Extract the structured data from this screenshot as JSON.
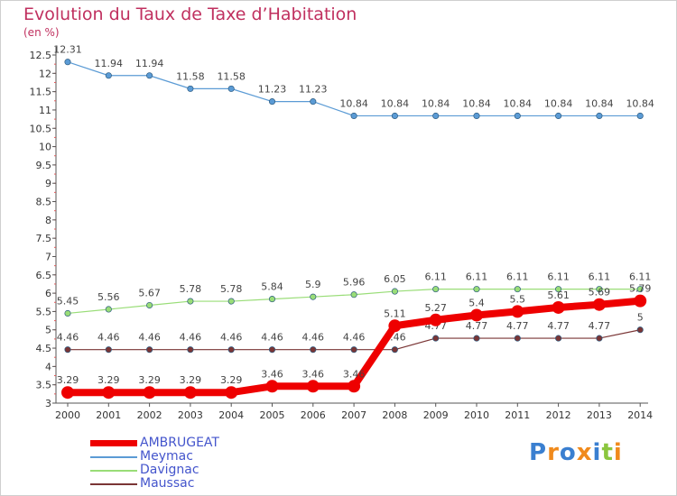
{
  "chart_data": {
    "type": "line",
    "title": "Evolution du Taux de Taxe d’Habitation",
    "unit": "(en %)",
    "x": [
      "2000",
      "2001",
      "2002",
      "2003",
      "2004",
      "2005",
      "2006",
      "2007",
      "2008",
      "2009",
      "2010",
      "2011",
      "2012",
      "2013",
      "2014"
    ],
    "ylim": [
      3,
      12.5
    ],
    "yticks": [
      "3",
      "3.5",
      "4",
      "4.5",
      "5",
      "5.5",
      "6",
      "6.5",
      "7",
      "7.5",
      "8",
      "8.5",
      "9",
      "9.5",
      "10",
      "10.5",
      "11",
      "11.5",
      "12",
      "12.5"
    ],
    "grid": false,
    "legend_position": "bottom-left",
    "series": [
      {
        "name": "Meymac",
        "color": "#5b9bd5",
        "values": [
          12.31,
          11.94,
          11.94,
          11.58,
          11.58,
          11.23,
          11.23,
          10.84,
          10.84,
          10.84,
          10.84,
          10.84,
          10.84,
          10.84,
          10.84
        ],
        "labels": [
          "12.31",
          "11.94",
          "11.94",
          "11.58",
          "11.58",
          "11.23",
          "11.23",
          "10.84",
          "10.84",
          "10.84",
          "10.84",
          "10.84",
          "10.84",
          "10.84",
          "10.84"
        ]
      },
      {
        "name": "Davignac",
        "color": "#99dd77",
        "values": [
          5.45,
          5.56,
          5.67,
          5.78,
          5.78,
          5.84,
          5.9,
          5.96,
          6.05,
          6.11,
          6.11,
          6.11,
          6.11,
          6.11,
          6.11
        ],
        "labels": [
          "5.45",
          "5.56",
          "5.67",
          "5.78",
          "5.78",
          "5.84",
          "5.9",
          "5.96",
          "6.05",
          "6.11",
          "6.11",
          "6.11",
          "6.11",
          "6.11",
          "6.11"
        ]
      },
      {
        "name": "Maussac",
        "color": "#7a3535",
        "values": [
          4.46,
          4.46,
          4.46,
          4.46,
          4.46,
          4.46,
          4.46,
          4.46,
          4.46,
          4.77,
          4.77,
          4.77,
          4.77,
          4.77,
          5
        ],
        "labels": [
          "4.46",
          "4.46",
          "4.46",
          "4.46",
          "4.46",
          "4.46",
          "4.46",
          "4.46",
          "4.46",
          "4.77",
          "4.77",
          "4.77",
          "4.77",
          "4.77",
          "5"
        ]
      },
      {
        "name": "AMBRUGEAT",
        "color": "#ee0000",
        "values": [
          3.29,
          3.29,
          3.29,
          3.29,
          3.29,
          3.46,
          3.46,
          3.46,
          5.11,
          5.27,
          5.4,
          5.5,
          5.61,
          5.69,
          5.79
        ],
        "labels": [
          "3.29",
          "3.29",
          "3.29",
          "3.29",
          "3.29",
          "3.46",
          "3.46",
          "3.46",
          "5.11",
          "5.27",
          "5.4",
          "5.5",
          "5.61",
          "5.69",
          "5.79"
        ]
      }
    ]
  },
  "legend": [
    {
      "label": "AMBRUGEAT",
      "color": "#ee0000"
    },
    {
      "label": "Meymac",
      "color": "#5b9bd5"
    },
    {
      "label": "Davignac",
      "color": "#99dd77"
    },
    {
      "label": "Maussac",
      "color": "#7a3535"
    }
  ],
  "logo": {
    "text": "Proxiti",
    "colors": [
      "#3a7fd0",
      "#f08a1c",
      "#3a7fd0",
      "#f08a1c",
      "#3a7fd0",
      "#8bc63e",
      "#f08a1c"
    ]
  }
}
